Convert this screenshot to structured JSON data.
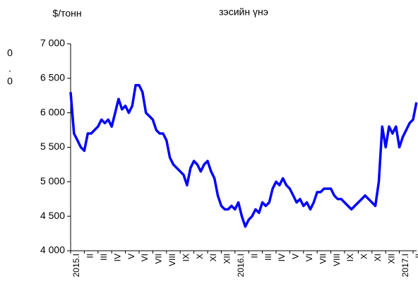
{
  "chart_data": {
    "type": "line",
    "title": "зэсийн үнэ",
    "y_unit": "$/тонн",
    "annotations": [
      "0",
      ".",
      "0"
    ],
    "categories": [
      "2015.I",
      null,
      null,
      null,
      "II",
      null,
      null,
      null,
      "III",
      null,
      null,
      null,
      "IV",
      null,
      null,
      null,
      "V",
      null,
      null,
      null,
      "VI",
      null,
      null,
      null,
      "VII",
      null,
      null,
      null,
      "VIII",
      null,
      null,
      null,
      "IX",
      null,
      null,
      null,
      "X",
      null,
      null,
      null,
      "XI",
      null,
      null,
      null,
      "XII",
      null,
      null,
      null,
      "2016.I",
      null,
      null,
      null,
      "II",
      null,
      null,
      null,
      "III",
      null,
      null,
      null,
      "IV",
      null,
      null,
      null,
      "V",
      null,
      null,
      null,
      "VI",
      null,
      null,
      null,
      "VII",
      null,
      null,
      null,
      "VIII",
      null,
      null,
      null,
      "IX",
      null,
      null,
      null,
      "X",
      null,
      null,
      null,
      "XI",
      null,
      null,
      null,
      "XII",
      null,
      null,
      null,
      "2017.I",
      null,
      null,
      null,
      "II",
      null
    ],
    "series": [
      {
        "name": "зэс",
        "color": "#0000ff",
        "values": [
          6300,
          5700,
          5600,
          5500,
          5450,
          5700,
          5700,
          5750,
          5800,
          5900,
          5850,
          5900,
          5800,
          6000,
          6200,
          6050,
          6100,
          6000,
          6100,
          6400,
          6400,
          6300,
          6000,
          5950,
          5900,
          5750,
          5700,
          5700,
          5600,
          5350,
          5250,
          5200,
          5150,
          5100,
          4950,
          5200,
          5300,
          5250,
          5150,
          5250,
          5300,
          5150,
          5050,
          4800,
          4650,
          4600,
          4600,
          4650,
          4600,
          4700,
          4500,
          4350,
          4450,
          4500,
          4600,
          4550,
          4700,
          4650,
          4700,
          4900,
          5000,
          4950,
          5050,
          4950,
          4900,
          4800,
          4700,
          4750,
          4650,
          4700,
          4600,
          4700,
          4850,
          4850,
          4900,
          4900,
          4900,
          4800,
          4750,
          4750,
          4700,
          4650,
          4600,
          4650,
          4700,
          4750,
          4800,
          4750,
          4700,
          4650,
          5000,
          5800,
          5500,
          5800,
          5700,
          5800,
          5500,
          5650,
          5750,
          5850,
          5900,
          6150
        ]
      }
    ],
    "ylim": [
      4000,
      7000
    ],
    "yticks": [
      {
        "value": 4000,
        "label": "4 000"
      },
      {
        "value": 4500,
        "label": "4 500"
      },
      {
        "value": 5000,
        "label": "5 000"
      },
      {
        "value": 5500,
        "label": "5 500"
      },
      {
        "value": 6000,
        "label": "6 000"
      },
      {
        "value": 6500,
        "label": "6 500"
      },
      {
        "value": 7000,
        "label": "7 000"
      }
    ]
  }
}
